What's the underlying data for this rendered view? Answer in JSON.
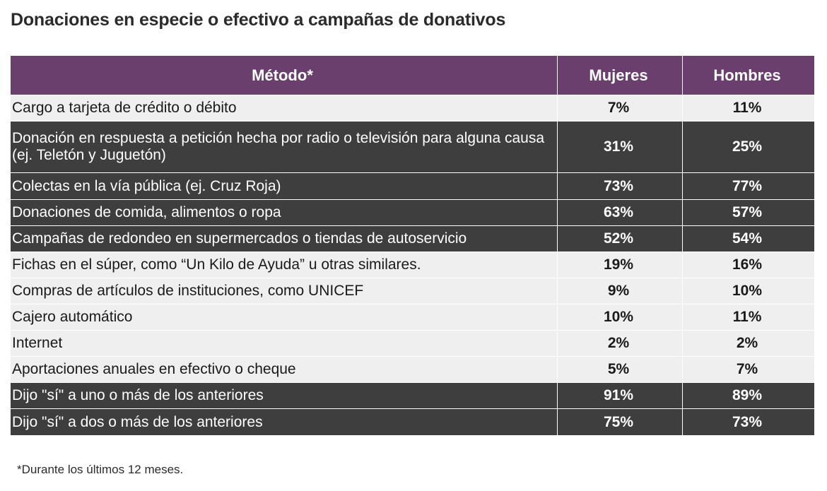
{
  "title": "Donaciones en especie o efectivo a campañas de donativos",
  "table": {
    "headers": {
      "method": "Método*",
      "women": "Mujeres",
      "men": "Hombres"
    },
    "rows": [
      {
        "method": "Cargo a tarjeta de crédito o débito",
        "women": "7%",
        "men": "11%",
        "style": "light"
      },
      {
        "method": "Donación en respuesta a petición hecha por radio o televisión para alguna causa (ej. Teletón y Juguetón)",
        "women": "31%",
        "men": "25%",
        "style": "dark"
      },
      {
        "method": "Colectas en la vía pública (ej. Cruz Roja)",
        "women": "73%",
        "men": "77%",
        "style": "dark"
      },
      {
        "method": "Donaciones de comida, alimentos o ropa",
        "women": "63%",
        "men": "57%",
        "style": "dark"
      },
      {
        "method": "Campañas de redondeo en supermercados o tiendas de autoservicio",
        "women": "52%",
        "men": "54%",
        "style": "dark"
      },
      {
        "method": "Fichas en el súper, como “Un Kilo de Ayuda” u otras similares.",
        "women": "19%",
        "men": "16%",
        "style": "light"
      },
      {
        "method": "Compras de artículos de instituciones, como UNICEF",
        "women": "9%",
        "men": "10%",
        "style": "light"
      },
      {
        "method": "Cajero automático",
        "women": "10%",
        "men": "11%",
        "style": "light"
      },
      {
        "method": "Internet",
        "women": "2%",
        "men": "2%",
        "style": "light"
      },
      {
        "method": "Aportaciones anuales en efectivo o cheque",
        "women": "5%",
        "men": "7%",
        "style": "light"
      },
      {
        "method": "Dijo \"sí\" a uno o más de los anteriores",
        "women": "91%",
        "men": "89%",
        "style": "dark"
      },
      {
        "method": "Dijo \"sí\" a dos o más de los anteriores",
        "women": "75%",
        "men": "73%",
        "style": "dark"
      }
    ]
  },
  "footnote": "*Durante los últimos 12 meses.",
  "colors": {
    "header_bg": "#6a3f6e",
    "dark_row_bg": "#3f3e3f",
    "light_row_bg": "#efefef"
  }
}
